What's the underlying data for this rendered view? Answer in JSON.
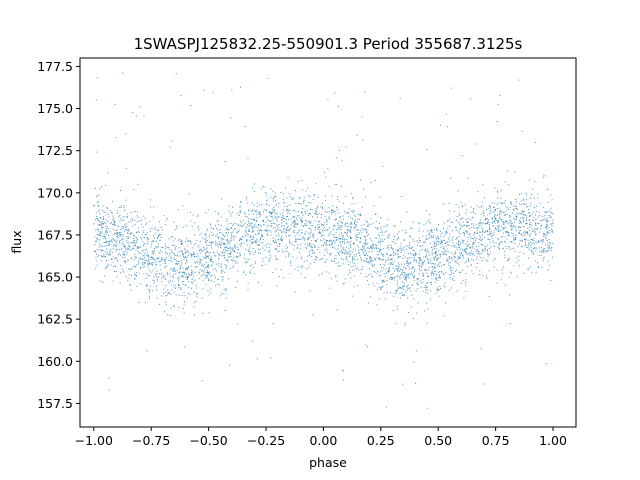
{
  "chart_data": {
    "type": "scatter",
    "title": "1SWASPJ125832.25-550901.3 Period 355687.3125s",
    "xlabel": "phase",
    "ylabel": "flux",
    "xlim": [
      -1.06,
      1.1
    ],
    "ylim": [
      156.1,
      178.0
    ],
    "xticks": [
      -1.0,
      -0.75,
      -0.5,
      -0.25,
      0.0,
      0.25,
      0.5,
      0.75,
      1.0
    ],
    "xtick_labels": [
      "−1.00",
      "−0.75",
      "−0.50",
      "−0.25",
      "0.00",
      "0.25",
      "0.50",
      "0.75",
      "1.00"
    ],
    "yticks": [
      157.5,
      160.0,
      162.5,
      165.0,
      167.5,
      170.0,
      172.5,
      175.0,
      177.5
    ],
    "ytick_labels": [
      "157.5",
      "160.0",
      "162.5",
      "165.0",
      "167.5",
      "170.0",
      "172.5",
      "175.0",
      "177.5"
    ],
    "grid": false,
    "marker_color": "#1f77b4",
    "series": [
      {
        "points_sampled_from_image": true,
        "profile": {
          "phase": [
            -1.0,
            -0.9,
            -0.8,
            -0.7,
            -0.65,
            -0.6,
            -0.5,
            -0.4,
            -0.3,
            -0.25,
            -0.2,
            -0.1,
            0.0,
            0.1,
            0.2,
            0.3,
            0.35,
            0.4,
            0.5,
            0.6,
            0.7,
            0.75,
            0.8,
            0.9,
            1.0
          ],
          "flux": [
            167.6,
            167.4,
            166.6,
            165.9,
            165.5,
            165.7,
            166.2,
            166.9,
            167.6,
            168.0,
            168.1,
            167.9,
            167.6,
            167.4,
            166.6,
            165.9,
            165.5,
            165.7,
            166.2,
            166.9,
            167.6,
            168.0,
            168.1,
            167.9,
            167.6
          ]
        }
      }
    ]
  }
}
